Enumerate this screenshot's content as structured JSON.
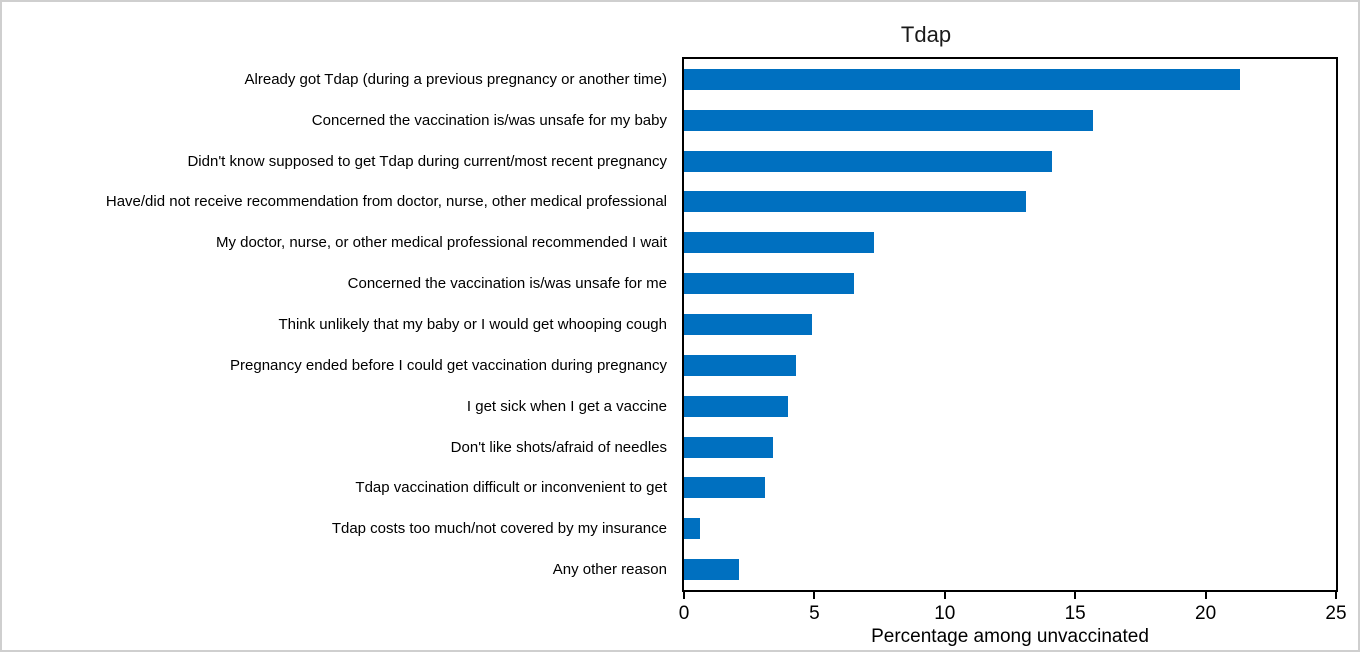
{
  "chart_data": {
    "type": "bar",
    "orientation": "horizontal",
    "title": "Tdap",
    "xlabel": "Percentage among unvaccinated",
    "xlim": [
      0,
      25
    ],
    "x_ticks": [
      0,
      5,
      10,
      15,
      20,
      25
    ],
    "bar_color": "#0070C0",
    "grid": false,
    "legend": false,
    "categories": [
      "Already got Tdap (during a previous pregnancy or another time)",
      "Concerned the vaccination is/was unsafe for my baby",
      "Didn't know supposed to get Tdap during current/most recent pregnancy",
      "Have/did not receive recommendation from doctor, nurse, other medical professional",
      "My doctor, nurse, or other medical professional recommended I wait",
      "Concerned the vaccination is/was unsafe for me",
      "Think unlikely that my baby or I would get whooping cough",
      "Pregnancy ended before I could get vaccination during pregnancy",
      "I get sick when I get a vaccine",
      "Don't like shots/afraid of needles",
      "Tdap vaccination difficult or inconvenient to get",
      "Tdap costs too much/not covered by my insurance",
      "Any other reason"
    ],
    "values": [
      21.3,
      15.7,
      14.1,
      13.1,
      7.3,
      6.5,
      4.9,
      4.3,
      4.0,
      3.4,
      3.1,
      0.6,
      2.1
    ]
  }
}
